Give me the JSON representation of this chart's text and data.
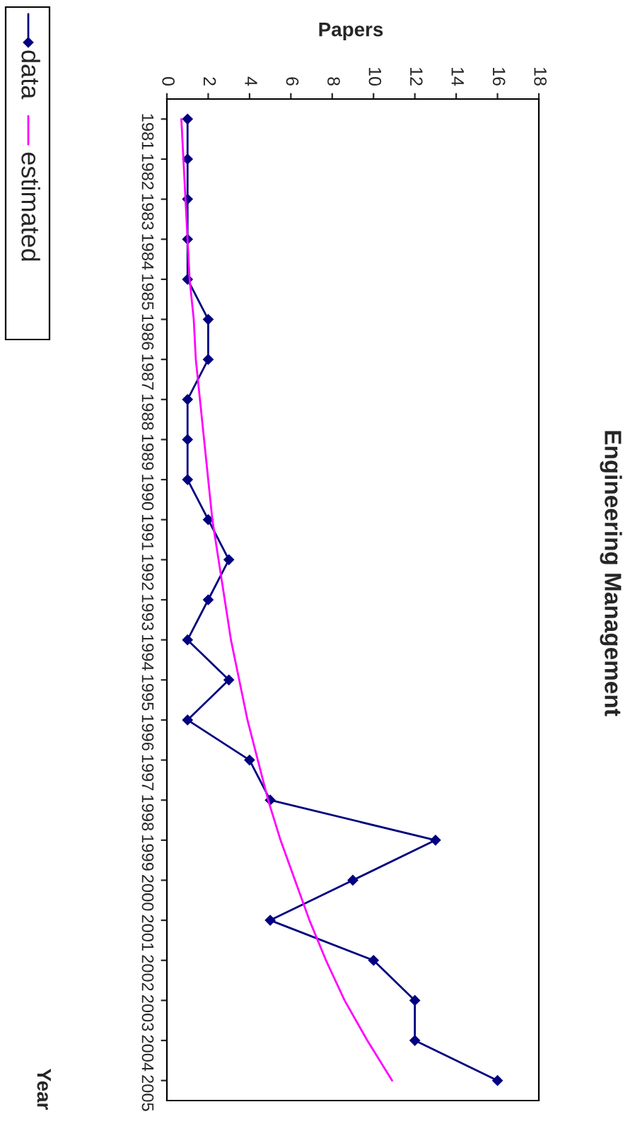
{
  "chart_data": {
    "type": "line",
    "title": "Engineering Management",
    "xlabel": "Papers",
    "ylabel": "Year",
    "orientation": "horizontal",
    "categories": [
      "1981",
      "1982",
      "1983",
      "1984",
      "1985",
      "1986",
      "1987",
      "1988",
      "1989",
      "1990",
      "1991",
      "1992",
      "1993",
      "1994",
      "1995",
      "1996",
      "1997",
      "1998",
      "1999",
      "2000",
      "2001",
      "2002",
      "2003",
      "2004",
      "2005"
    ],
    "series": [
      {
        "name": "data",
        "color": "#000080",
        "marker": "diamond",
        "values": [
          1,
          1,
          1,
          1,
          1,
          2,
          2,
          1,
          1,
          1,
          2,
          3,
          2,
          1,
          3,
          1,
          4,
          5,
          13,
          9,
          5,
          10,
          12,
          12,
          16
        ]
      },
      {
        "name": "estimated",
        "color": "#ff00ff",
        "marker": "none",
        "values": [
          0.7,
          0.8,
          0.9,
          1.0,
          1.1,
          1.3,
          1.4,
          1.6,
          1.8,
          2.0,
          2.2,
          2.5,
          2.8,
          3.1,
          3.5,
          3.9,
          4.4,
          4.9,
          5.5,
          6.2,
          6.9,
          7.7,
          8.6,
          9.7,
          10.9
        ]
      }
    ],
    "xlim": [
      0,
      18
    ],
    "xticks": [
      0,
      2,
      4,
      6,
      8,
      10,
      12,
      14,
      16,
      18
    ],
    "grid": false,
    "legend": "top left"
  }
}
